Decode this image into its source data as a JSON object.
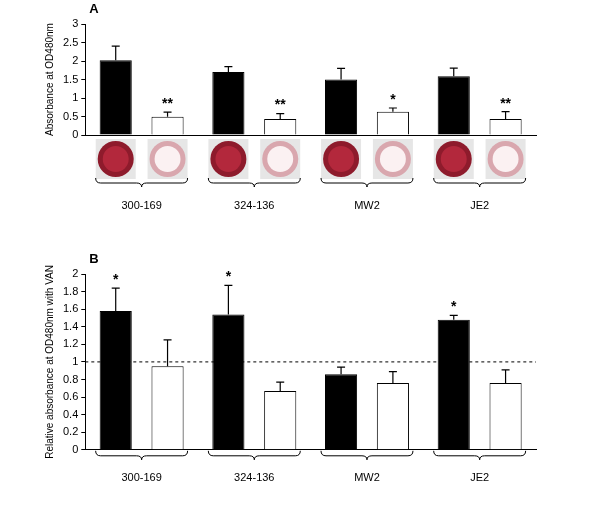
{
  "chart_data": [
    {
      "type": "bar",
      "panel": "A",
      "y_label": "Absorbance at OD480nm",
      "categories": [
        "300-169",
        "324-136",
        "MW2",
        "JE2"
      ],
      "series": [
        {
          "color": "#000000",
          "values": [
            2.02,
            1.7,
            1.5,
            1.59
          ],
          "errors": [
            0.38,
            0.15,
            0.3,
            0.22
          ]
        },
        {
          "color": "#ffffff",
          "values": [
            0.49,
            0.43,
            0.63,
            0.43
          ],
          "errors": [
            0.13,
            0.15,
            0.1,
            0.2
          ],
          "significance": [
            "**",
            "**",
            "*",
            "**"
          ]
        }
      ],
      "ylim": [
        0,
        3
      ],
      "yticks": [
        0,
        0.5,
        1,
        1.5,
        2,
        2.5,
        3
      ],
      "grid": false
    },
    {
      "type": "bar",
      "panel": "B",
      "y_label": "Relative absorbance at OD480nm with VAN",
      "categories": [
        "300-169",
        "324-136",
        "MW2",
        "JE2"
      ],
      "series": [
        {
          "color": "#000000",
          "values": [
            1.58,
            1.54,
            0.86,
            1.48
          ],
          "errors": [
            0.26,
            0.33,
            0.08,
            0.05
          ],
          "significance": [
            "*",
            "*",
            null,
            "*"
          ]
        },
        {
          "color": "#ffffff",
          "values": [
            0.95,
            0.67,
            0.76,
            0.76
          ],
          "errors": [
            0.3,
            0.1,
            0.13,
            0.15
          ]
        }
      ],
      "ylim": [
        0,
        2
      ],
      "yticks": [
        0,
        0.2,
        0.4,
        0.6,
        0.8,
        1,
        1.2,
        1.4,
        1.6,
        1.8,
        2
      ],
      "grid": false,
      "reference_line": 1
    }
  ]
}
